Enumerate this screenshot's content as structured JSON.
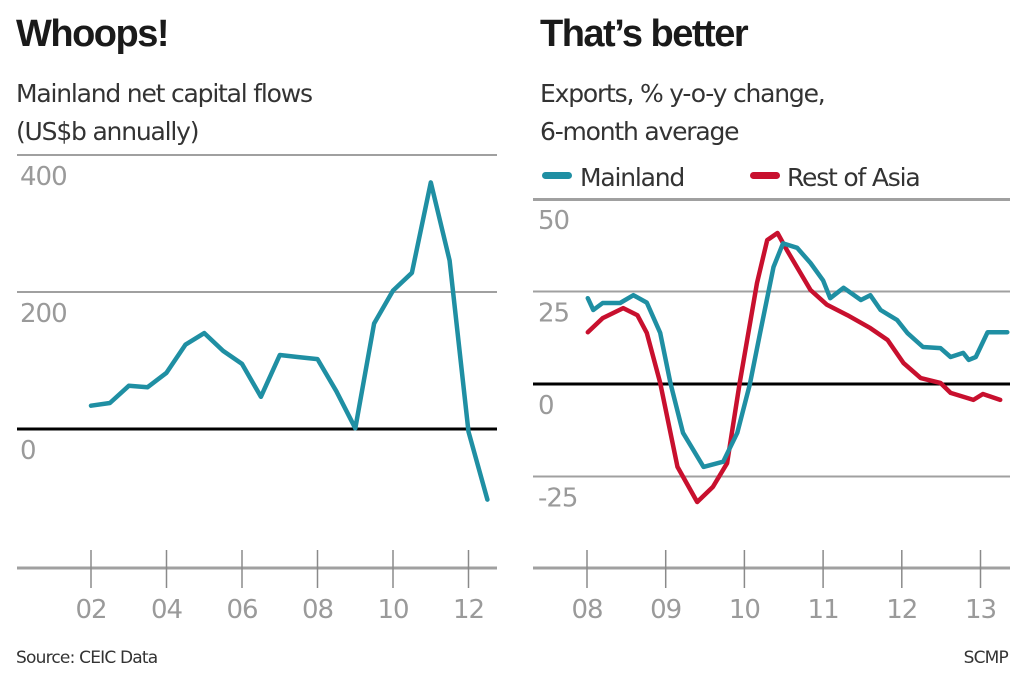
{
  "source": "Source: CEIC Data",
  "credit": "SCMP",
  "colors": {
    "mainland": "#1f8fa3",
    "rest_of_asia": "#c8102e",
    "grid": "#a0a0a0",
    "zero": "#000000"
  },
  "chart_data": [
    {
      "type": "line",
      "title": "Whoops!",
      "subtitle": [
        "Mainland net capital flows",
        "(US$b annually)"
      ],
      "ylim": [
        -200,
        400
      ],
      "yticks": [
        {
          "v": 400,
          "label": "400"
        },
        {
          "v": 200,
          "label": "200"
        },
        {
          "v": 0,
          "label": "0"
        }
      ],
      "xticks": [
        {
          "v": 2002,
          "label": "02"
        },
        {
          "v": 2004,
          "label": "04"
        },
        {
          "v": 2006,
          "label": "06"
        },
        {
          "v": 2008,
          "label": "08"
        },
        {
          "v": 2010,
          "label": "10"
        },
        {
          "v": 2012,
          "label": "12"
        }
      ],
      "grid": true,
      "series": [
        {
          "color": "#1f8fa3",
          "x": [
            2002.0,
            2002.5,
            2003.0,
            2003.5,
            2004.0,
            2004.5,
            2005.0,
            2005.5,
            2006.0,
            2006.5,
            2007.0,
            2007.5,
            2008.0,
            2008.5,
            2009.0,
            2009.5,
            2010.0,
            2010.5,
            2011.0,
            2011.5,
            2012.0,
            2012.5
          ],
          "y": [
            34,
            38,
            63,
            61,
            82,
            123,
            140,
            114,
            95,
            47,
            108,
            105,
            102,
            55,
            1,
            154,
            202,
            228,
            360,
            246,
            -4,
            -103
          ]
        }
      ]
    },
    {
      "type": "line",
      "title": "That’s better",
      "subtitle": [
        "Exports, % y-o-y change,",
        "6-month average"
      ],
      "ylim": [
        -50,
        50
      ],
      "yticks": [
        {
          "v": 50,
          "label": "50"
        },
        {
          "v": 25,
          "label": "25"
        },
        {
          "v": 0,
          "label": "0"
        },
        {
          "v": -25,
          "label": "-25"
        }
      ],
      "xticks": [
        {
          "v": 2008,
          "label": "08"
        },
        {
          "v": 2009,
          "label": "09"
        },
        {
          "v": 2010,
          "label": "10"
        },
        {
          "v": 2011,
          "label": "11"
        },
        {
          "v": 2012,
          "label": "12"
        },
        {
          "v": 2013,
          "label": "13"
        }
      ],
      "grid": true,
      "legend": "top-left",
      "series": [
        {
          "name": "Mainland",
          "color": "#1f8fa3",
          "x": [
            2008.01,
            2008.08,
            2008.2,
            2008.42,
            2008.59,
            2008.76,
            2008.93,
            2009.06,
            2009.22,
            2009.48,
            2009.73,
            2009.91,
            2010.07,
            2010.2,
            2010.37,
            2010.49,
            2010.67,
            2010.84,
            2011.0,
            2011.09,
            2011.26,
            2011.48,
            2011.6,
            2011.73,
            2011.94,
            2012.07,
            2012.27,
            2012.49,
            2012.62,
            2012.78,
            2012.85,
            2012.94,
            2013.09,
            2013.34
          ],
          "y": [
            23.2,
            20,
            21.9,
            21.9,
            24,
            22,
            13.8,
            0.3,
            -13.2,
            -22.4,
            -21,
            -13.2,
            0,
            13.8,
            31.6,
            38,
            36.8,
            32.7,
            28,
            23.2,
            26,
            22.7,
            24,
            20,
            17.3,
            13.8,
            10,
            9.7,
            7.3,
            8.4,
            6.5,
            7.3,
            14,
            14
          ]
        },
        {
          "name": "Rest of Asia",
          "color": "#c8102e",
          "x": [
            2008.01,
            2008.2,
            2008.46,
            2008.64,
            2008.76,
            2008.93,
            2009.15,
            2009.4,
            2009.6,
            2009.78,
            2009.94,
            2010.16,
            2010.29,
            2010.42,
            2010.54,
            2010.84,
            2011.05,
            2011.31,
            2011.6,
            2011.82,
            2012.02,
            2012.24,
            2012.49,
            2012.62,
            2012.91,
            2013.03,
            2013.25
          ],
          "y": [
            14,
            17.8,
            20.5,
            18.6,
            13.8,
            0.3,
            -22.4,
            -31.9,
            -27.8,
            -21.4,
            0.3,
            27.3,
            38.9,
            40.8,
            36.2,
            25.4,
            21.4,
            18.6,
            15.1,
            11.9,
            5.7,
            1.6,
            0.3,
            -2.4,
            -4.3,
            -2.7,
            -4.3
          ]
        }
      ]
    }
  ]
}
